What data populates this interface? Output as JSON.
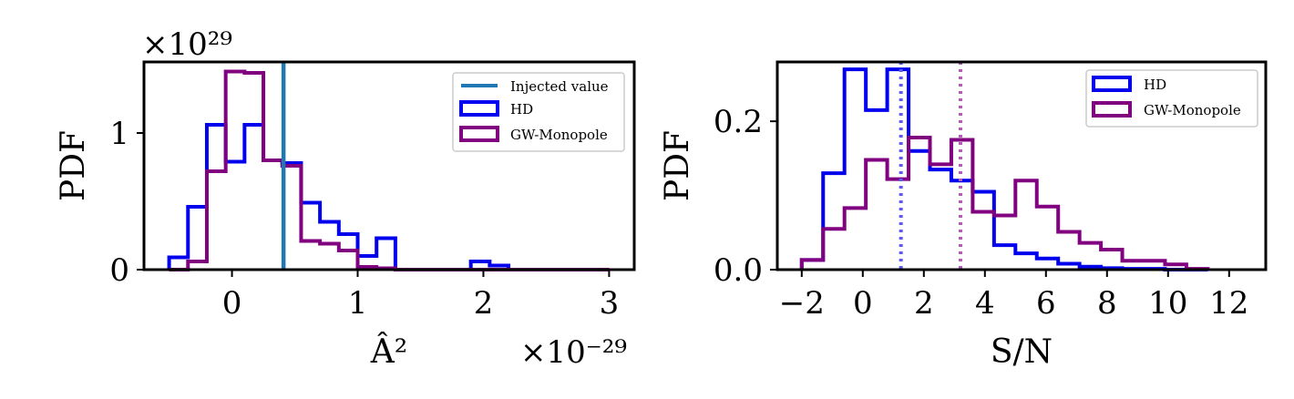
{
  "chart_data": [
    {
      "type": "histogram",
      "xlabel": "Â²",
      "ylabel": "PDF",
      "x_multiplier": "×10⁻²⁹",
      "y_multiplier": "×10²⁹",
      "xlim": [
        -0.7,
        3.2
      ],
      "ylim": [
        0,
        1.52
      ],
      "xticks": [
        0,
        1,
        2,
        3
      ],
      "yticks": [
        0,
        1
      ],
      "legend_position": "top-right",
      "bin_edges": [
        -0.5,
        -0.35,
        -0.2,
        -0.05,
        0.1,
        0.25,
        0.4,
        0.55,
        0.7,
        0.85,
        1.0,
        1.15,
        1.3,
        1.45,
        1.6,
        1.75,
        1.9,
        2.05,
        2.2,
        2.35,
        2.5,
        2.65,
        2.8,
        3.0
      ],
      "series": [
        {
          "name": "HD",
          "color": "#0000ee",
          "values": [
            0.09,
            0.46,
            1.06,
            0.79,
            1.06,
            0.8,
            0.78,
            0.49,
            0.35,
            0.26,
            0.1,
            0.23,
            0,
            0,
            0,
            0,
            0.06,
            0.03,
            0,
            0,
            0,
            0,
            0
          ]
        },
        {
          "name": "GW-Monopole",
          "color": "#800080",
          "values": [
            0,
            0.06,
            0.72,
            1.45,
            1.44,
            0.8,
            0.76,
            0.21,
            0.19,
            0.14,
            0.02,
            0.01,
            0,
            0,
            0,
            0,
            0,
            0,
            0,
            0,
            0,
            0,
            0
          ]
        }
      ],
      "vline": {
        "name": "Injected value",
        "x": 0.41,
        "color": "#1f77b4"
      }
    },
    {
      "type": "histogram",
      "xlabel": "S/N",
      "ylabel": "PDF",
      "xlim": [
        -2.8,
        13.2
      ],
      "ylim": [
        0,
        0.28
      ],
      "xticks": [
        -2,
        0,
        2,
        4,
        6,
        8,
        10,
        12
      ],
      "xtick_labels": [
        "−2",
        "0",
        "2",
        "4",
        "6",
        "8",
        "10",
        "12"
      ],
      "yticks": [
        0.0,
        0.2
      ],
      "ytick_labels": [
        "0.0",
        "0.2"
      ],
      "legend_position": "top-right",
      "series": [
        {
          "name": "HD",
          "color": "#0000ee",
          "bin_edges": [
            -2.0,
            -1.3,
            -0.6,
            0.1,
            0.8,
            1.5,
            2.2,
            2.9,
            3.6,
            4.3,
            5.0,
            5.7,
            6.4,
            7.1,
            7.8,
            8.5,
            9.2,
            9.9,
            10.6,
            11.3
          ],
          "values": [
            0.013,
            0.13,
            0.27,
            0.215,
            0.27,
            0.16,
            0.135,
            0.12,
            0.105,
            0.033,
            0.022,
            0.015,
            0.008,
            0.004,
            0.002,
            0.001,
            0.001,
            0,
            0
          ]
        },
        {
          "name": "GW-Monopole",
          "color": "#800080",
          "bin_edges": [
            -2.0,
            -1.3,
            -0.6,
            0.1,
            0.8,
            1.5,
            2.2,
            2.9,
            3.6,
            4.3,
            5.0,
            5.7,
            6.4,
            7.1,
            7.8,
            8.5,
            9.2,
            9.9,
            10.6,
            11.3
          ],
          "values": [
            0.013,
            0.055,
            0.083,
            0.148,
            0.122,
            0.178,
            0.142,
            0.175,
            0.078,
            0.073,
            0.12,
            0.085,
            0.051,
            0.036,
            0.027,
            0.012,
            0.012,
            0.007,
            0.001
          ]
        }
      ],
      "vlines": [
        {
          "x": 1.25,
          "color": "#5a5af5",
          "style": "dotted"
        },
        {
          "x": 3.2,
          "color": "#b25cb8",
          "style": "dotted"
        }
      ]
    }
  ]
}
